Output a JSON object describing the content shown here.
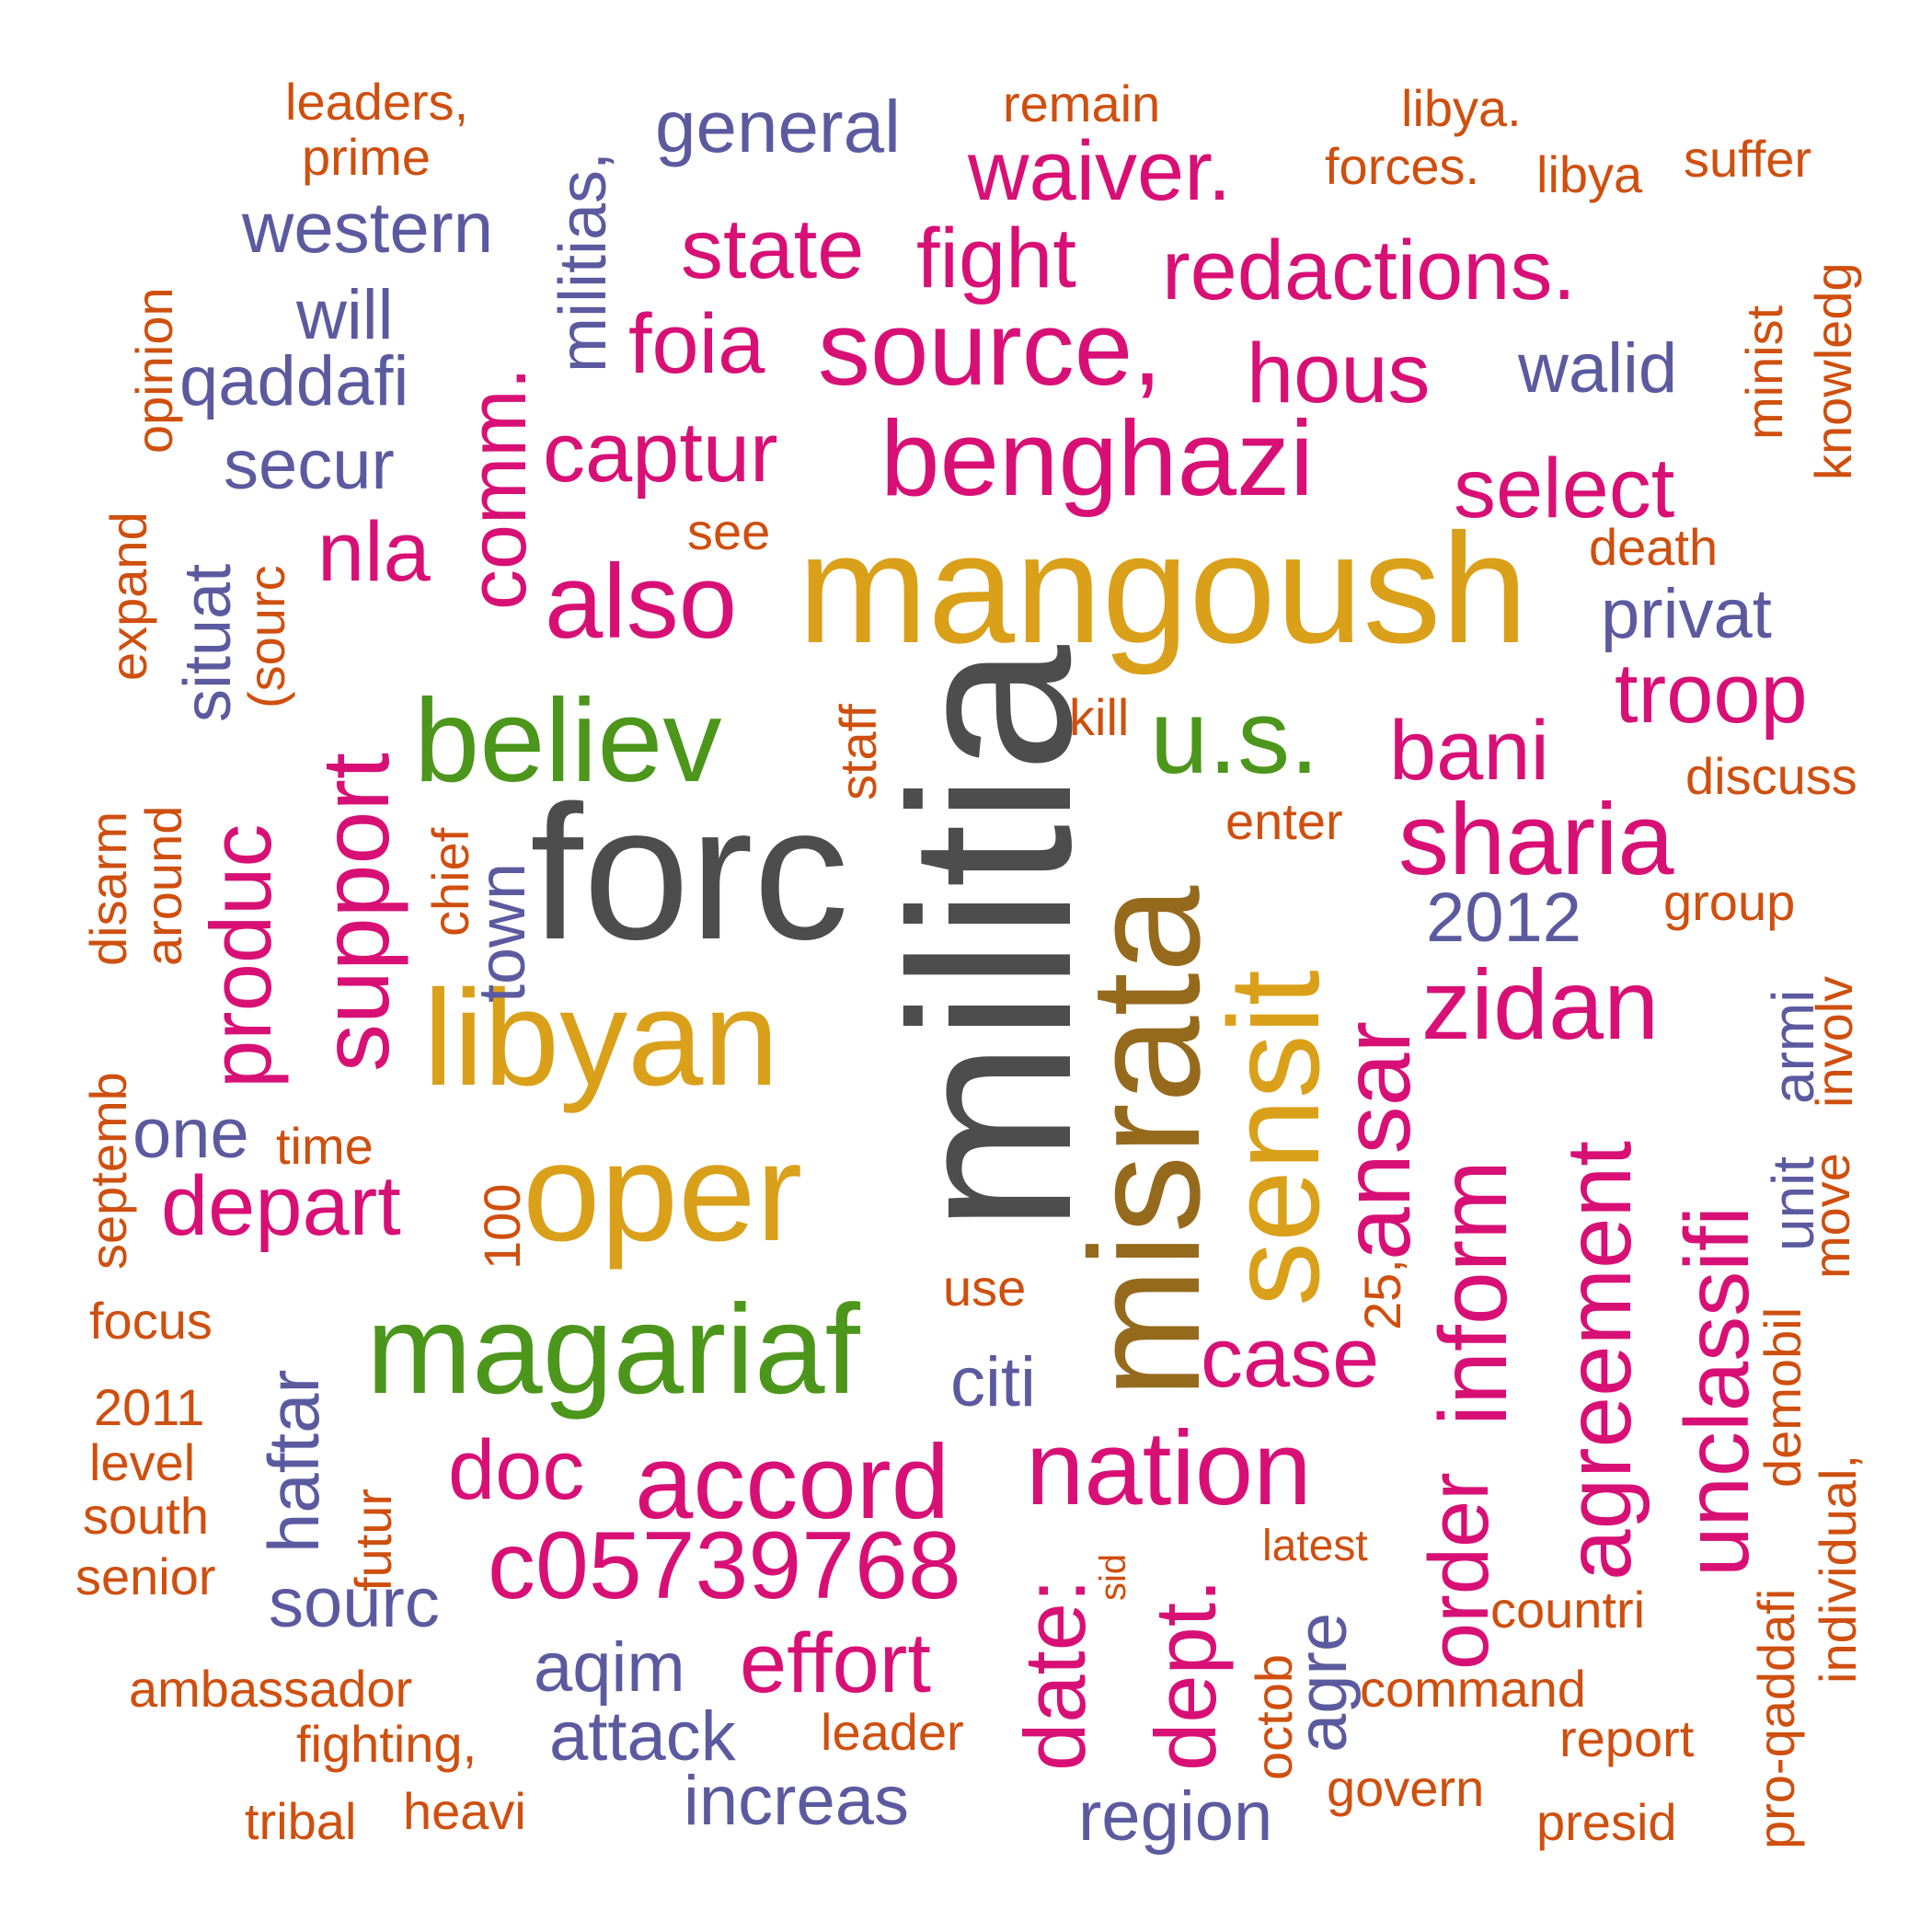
{
  "palette": {
    "gray": "#4d4d4d",
    "gold": "#daa01a",
    "brown": "#966a1d",
    "green": "#4c961c",
    "magenta": "#d81076",
    "purple": "#5c5a9f",
    "orange": "#cf4f0f"
  },
  "words": [
    {
      "text": "militia",
      "color": "gray"
    },
    {
      "text": "forc",
      "color": "gray"
    },
    {
      "text": "mangoush",
      "color": "gold"
    },
    {
      "text": "misrata",
      "color": "brown"
    },
    {
      "text": "libyan",
      "color": "gold"
    },
    {
      "text": "oper",
      "color": "gold"
    },
    {
      "text": "sensit",
      "color": "gold"
    },
    {
      "text": "magariaf",
      "color": "green"
    },
    {
      "text": "believ",
      "color": "green"
    },
    {
      "text": "u.s.",
      "color": "green"
    },
    {
      "text": "benghazi",
      "color": "magenta"
    },
    {
      "text": "source,",
      "color": "magenta"
    },
    {
      "text": "also",
      "color": "magenta"
    },
    {
      "text": "nation",
      "color": "magenta"
    },
    {
      "text": "accord",
      "color": "magenta"
    },
    {
      "text": "c05739768",
      "color": "magenta"
    },
    {
      "text": "sharia",
      "color": "magenta"
    },
    {
      "text": "zidan",
      "color": "magenta"
    },
    {
      "text": "support",
      "color": "magenta"
    },
    {
      "text": "ansar",
      "color": "magenta"
    },
    {
      "text": "inform",
      "color": "magenta"
    },
    {
      "text": "agreement",
      "color": "magenta"
    },
    {
      "text": "unclassifi",
      "color": "magenta"
    },
    {
      "text": "date:",
      "color": "magenta"
    },
    {
      "text": "dept.",
      "color": "magenta"
    },
    {
      "text": "order",
      "color": "magenta"
    },
    {
      "text": "produc",
      "color": "magenta"
    },
    {
      "text": "comm.",
      "color": "magenta"
    },
    {
      "text": "redactions.",
      "color": "magenta"
    },
    {
      "text": "waiver.",
      "color": "magenta"
    },
    {
      "text": "state",
      "color": "magenta"
    },
    {
      "text": "fight",
      "color": "magenta"
    },
    {
      "text": "foia",
      "color": "magenta"
    },
    {
      "text": "hous",
      "color": "magenta"
    },
    {
      "text": "captur",
      "color": "magenta"
    },
    {
      "text": "select",
      "color": "magenta"
    },
    {
      "text": "nla",
      "color": "magenta"
    },
    {
      "text": "troop",
      "color": "magenta"
    },
    {
      "text": "bani",
      "color": "magenta"
    },
    {
      "text": "depart",
      "color": "magenta"
    },
    {
      "text": "case",
      "color": "magenta"
    },
    {
      "text": "doc",
      "color": "magenta"
    },
    {
      "text": "effort",
      "color": "magenta"
    },
    {
      "text": "general",
      "color": "purple"
    },
    {
      "text": "western",
      "color": "purple"
    },
    {
      "text": "will",
      "color": "purple"
    },
    {
      "text": "qaddafi",
      "color": "purple"
    },
    {
      "text": "secur",
      "color": "purple"
    },
    {
      "text": "walid",
      "color": "purple"
    },
    {
      "text": "privat",
      "color": "purple"
    },
    {
      "text": "2012",
      "color": "purple"
    },
    {
      "text": "militias,",
      "color": "purple"
    },
    {
      "text": "situat",
      "color": "purple"
    },
    {
      "text": "town",
      "color": "purple"
    },
    {
      "text": "one",
      "color": "purple"
    },
    {
      "text": "haftar",
      "color": "purple"
    },
    {
      "text": "sourc",
      "color": "purple"
    },
    {
      "text": "aqim",
      "color": "purple"
    },
    {
      "text": "attack",
      "color": "purple"
    },
    {
      "text": "increas",
      "color": "purple"
    },
    {
      "text": "region",
      "color": "purple"
    },
    {
      "text": "citi",
      "color": "purple"
    },
    {
      "text": "agre",
      "color": "purple"
    },
    {
      "text": "unit",
      "color": "purple"
    },
    {
      "text": "armi",
      "color": "purple"
    },
    {
      "text": "leaders,",
      "color": "orange"
    },
    {
      "text": "prime",
      "color": "orange"
    },
    {
      "text": "remain",
      "color": "orange"
    },
    {
      "text": "libya.",
      "color": "orange"
    },
    {
      "text": "forces.",
      "color": "orange"
    },
    {
      "text": "libya",
      "color": "orange"
    },
    {
      "text": "suffer",
      "color": "orange"
    },
    {
      "text": "opinion",
      "color": "orange"
    },
    {
      "text": "expand",
      "color": "orange"
    },
    {
      "text": "(sourc",
      "color": "orange"
    },
    {
      "text": "see",
      "color": "orange"
    },
    {
      "text": "death",
      "color": "orange"
    },
    {
      "text": "minist",
      "color": "orange"
    },
    {
      "text": "knowledg",
      "color": "orange"
    },
    {
      "text": "staff",
      "color": "orange"
    },
    {
      "text": "kill",
      "color": "orange"
    },
    {
      "text": "discuss",
      "color": "orange"
    },
    {
      "text": "enter",
      "color": "orange"
    },
    {
      "text": "group",
      "color": "orange"
    },
    {
      "text": "disarm",
      "color": "orange"
    },
    {
      "text": "around",
      "color": "orange"
    },
    {
      "text": "chief",
      "color": "orange"
    },
    {
      "text": "involv",
      "color": "orange"
    },
    {
      "text": "septemb",
      "color": "orange"
    },
    {
      "text": "time",
      "color": "orange"
    },
    {
      "text": "100",
      "color": "orange"
    },
    {
      "text": "move",
      "color": "orange"
    },
    {
      "text": "focus",
      "color": "orange"
    },
    {
      "text": "use",
      "color": "orange"
    },
    {
      "text": "25,",
      "color": "orange"
    },
    {
      "text": "demobil",
      "color": "orange"
    },
    {
      "text": "2011",
      "color": "orange"
    },
    {
      "text": "level",
      "color": "orange"
    },
    {
      "text": "futur",
      "color": "orange"
    },
    {
      "text": "south",
      "color": "orange"
    },
    {
      "text": "individual,",
      "color": "orange"
    },
    {
      "text": "senior",
      "color": "orange"
    },
    {
      "text": "sid",
      "color": "orange"
    },
    {
      "text": "latest",
      "color": "orange"
    },
    {
      "text": "countri",
      "color": "orange"
    },
    {
      "text": "pro-qaddafi",
      "color": "orange"
    },
    {
      "text": "ambassador",
      "color": "orange"
    },
    {
      "text": "octob",
      "color": "orange"
    },
    {
      "text": "command",
      "color": "orange"
    },
    {
      "text": "fighting,",
      "color": "orange"
    },
    {
      "text": "leader",
      "color": "orange"
    },
    {
      "text": "report",
      "color": "orange"
    },
    {
      "text": "tribal",
      "color": "orange"
    },
    {
      "text": "heavi",
      "color": "orange"
    },
    {
      "text": "govern",
      "color": "orange"
    },
    {
      "text": "presid",
      "color": "orange"
    }
  ]
}
